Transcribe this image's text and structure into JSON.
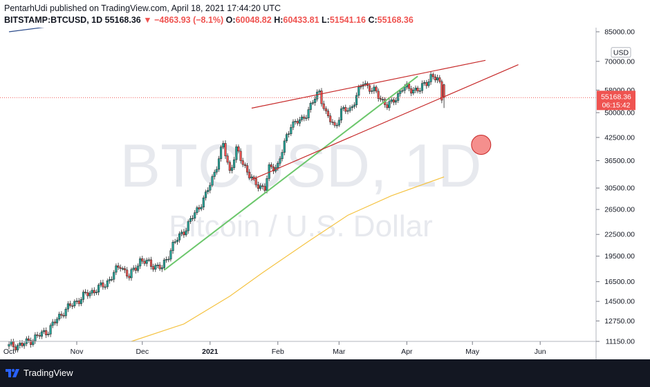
{
  "header": {
    "line1": "PentarhUdi published on TradingView.com, April 18, 2021 17:44:20 UTC",
    "symbol": "BITSTAMP:BTCUSD, 1D",
    "last": "55168.36",
    "arrow": "▼",
    "change": "−4863.93 (−8.1%)",
    "o_label": "O:",
    "o_value": "60048.82",
    "h_label": "H:",
    "h_value": "60433.81",
    "l_label": "L:",
    "l_value": "51541.16",
    "c_label": "C:",
    "c_value": "55168.36"
  },
  "watermark": {
    "symbol": "BTCUSD, 1D",
    "description": "Bitcoin / U.S. Dollar"
  },
  "price_label": {
    "price": "55168.36",
    "countdown": "06:15:42",
    "color": "#ef5350"
  },
  "footer": {
    "brand": "TradingView"
  },
  "colors": {
    "up": "#26a69a",
    "down": "#ef5350",
    "ma": "#f5c342",
    "channel": "#c62828",
    "trendline": "#6cc76c",
    "circle": "#ef5350"
  },
  "chart_data": {
    "type": "candlestick",
    "log_scale": true,
    "ylim": [
      11150,
      85000
    ],
    "y_ticks": [
      "85000.00",
      "70000.00",
      "58000.00",
      "50000.00",
      "42500.00",
      "36500.00",
      "30500.00",
      "26500.00",
      "22500.00",
      "19500.00",
      "16500.00",
      "14500.00",
      "12750.00",
      "11150.00"
    ],
    "currency_label": "USD",
    "x_ticks": [
      "Oct",
      "Nov",
      "Dec",
      "2021",
      "Feb",
      "Mar",
      "Apr",
      "May",
      "Jun"
    ],
    "x_tick_dates": [
      "2020-10-01",
      "2020-11-01",
      "2020-12-01",
      "2021-01-01",
      "2021-02-01",
      "2021-03-01",
      "2021-04-01",
      "2021-05-01",
      "2021-06-01"
    ],
    "xlim": [
      "2020-10-01",
      "2021-07-01"
    ],
    "key_points": [
      [
        "2020-10-01",
        10800
      ],
      [
        "2020-10-08",
        10900
      ],
      [
        "2020-10-20",
        12000
      ],
      [
        "2020-10-27",
        13600
      ],
      [
        "2020-11-05",
        15000
      ],
      [
        "2020-11-15",
        16200
      ],
      [
        "2020-11-22",
        18400
      ],
      [
        "2020-11-26",
        17000
      ],
      [
        "2020-12-01",
        19000
      ],
      [
        "2020-12-11",
        18000
      ],
      [
        "2020-12-16",
        21000
      ],
      [
        "2020-12-22",
        23500
      ],
      [
        "2020-12-31",
        29000
      ],
      [
        "2021-01-03",
        32500
      ],
      [
        "2021-01-08",
        40500
      ],
      [
        "2021-01-11",
        34000
      ],
      [
        "2021-01-14",
        39000
      ],
      [
        "2021-01-22",
        31500
      ],
      [
        "2021-01-27",
        30500
      ],
      [
        "2021-01-29",
        34500
      ],
      [
        "2021-02-02",
        35500
      ],
      [
        "2021-02-08",
        46500
      ],
      [
        "2021-02-13",
        47500
      ],
      [
        "2021-02-21",
        57500
      ],
      [
        "2021-02-24",
        49500
      ],
      [
        "2021-02-28",
        45500
      ],
      [
        "2021-03-03",
        50500
      ],
      [
        "2021-03-07",
        51000
      ],
      [
        "2021-03-13",
        61000
      ],
      [
        "2021-03-18",
        57500
      ],
      [
        "2021-03-24",
        52500
      ],
      [
        "2021-03-26",
        53000
      ],
      [
        "2021-03-31",
        58800
      ],
      [
        "2021-04-08",
        58000
      ],
      [
        "2021-04-13",
        63500
      ],
      [
        "2021-04-16",
        62000
      ],
      [
        "2021-04-17",
        60048.82
      ],
      [
        "2021-04-18",
        55168.36
      ]
    ],
    "last_candle": {
      "date": "2021-04-18",
      "open": 60048.82,
      "high": 60433.81,
      "low": 51541.16,
      "close": 55168.36
    },
    "moving_average": [
      [
        "2020-11-26",
        11150
      ],
      [
        "2020-12-20",
        12500
      ],
      [
        "2021-01-10",
        15000
      ],
      [
        "2021-01-25",
        17500
      ],
      [
        "2021-02-15",
        21500
      ],
      [
        "2021-03-05",
        25500
      ],
      [
        "2021-03-25",
        29000
      ],
      [
        "2021-04-18",
        32800
      ]
    ],
    "trendline_green": [
      [
        "2020-12-11",
        17800
      ],
      [
        "2021-04-06",
        63500
      ]
    ],
    "channel_upper": [
      [
        "2021-01-20",
        51500
      ],
      [
        "2021-05-07",
        70500
      ]
    ],
    "channel_lower": [
      [
        "2021-01-20",
        32200
      ],
      [
        "2021-05-22",
        68500
      ]
    ],
    "pre_chart_line": [
      [
        "2020-10-01",
        85000
      ],
      [
        "2020-11-01",
        90000
      ]
    ],
    "circle_marker": {
      "date": "2021-05-05",
      "price": 40500
    }
  }
}
